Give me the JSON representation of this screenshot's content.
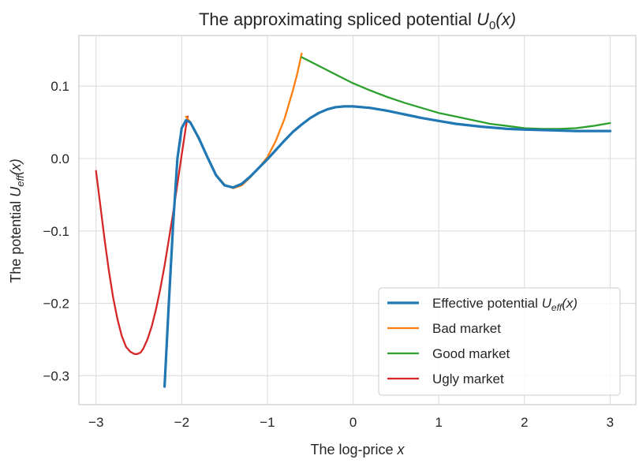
{
  "chart_data": {
    "type": "line",
    "title": {
      "prefix": "The approximating spliced potential ",
      "math": "U",
      "sub": "0",
      "suffix": "(x)"
    },
    "xlabel": {
      "prefix": "The log-price ",
      "math": "x"
    },
    "ylabel": {
      "prefix": "The potential ",
      "math": "U",
      "sub": "eff",
      "suffix": "(x)"
    },
    "xlim": [
      -3.2,
      3.3
    ],
    "ylim": [
      -0.34,
      0.17
    ],
    "xticks": [
      -3,
      -2,
      -1,
      0,
      1,
      2,
      3
    ],
    "xtick_labels": [
      "−3",
      "−2",
      "−1",
      "0",
      "1",
      "2",
      "3"
    ],
    "yticks": [
      -0.3,
      -0.2,
      -0.1,
      0.0,
      0.1
    ],
    "ytick_labels": [
      "−0.3",
      "−0.2",
      "−0.1",
      "0.0",
      "0.1"
    ],
    "grid": true,
    "legend_position": "lower-right",
    "series": [
      {
        "name": "Effective potential",
        "name_math": "U",
        "name_sub": "eff",
        "name_suffix": "(x)",
        "color": "#1f77b4",
        "x": [
          -2.2,
          -2.15,
          -2.1,
          -2.05,
          -2.0,
          -1.95,
          -1.9,
          -1.8,
          -1.7,
          -1.6,
          -1.5,
          -1.4,
          -1.3,
          -1.2,
          -1.1,
          -1.0,
          -0.9,
          -0.8,
          -0.7,
          -0.6,
          -0.5,
          -0.4,
          -0.3,
          -0.2,
          -0.1,
          0.0,
          0.2,
          0.4,
          0.6,
          0.8,
          1.0,
          1.2,
          1.5,
          1.8,
          2.0,
          2.3,
          2.6,
          3.0
        ],
        "y": [
          -0.315,
          -0.2,
          -0.09,
          0.0,
          0.042,
          0.053,
          0.05,
          0.028,
          0.002,
          -0.023,
          -0.037,
          -0.04,
          -0.035,
          -0.025,
          -0.013,
          -0.001,
          0.012,
          0.025,
          0.037,
          0.047,
          0.056,
          0.063,
          0.068,
          0.071,
          0.072,
          0.072,
          0.07,
          0.066,
          0.061,
          0.056,
          0.052,
          0.048,
          0.044,
          0.041,
          0.04,
          0.039,
          0.038,
          0.038
        ]
      },
      {
        "name": "Bad market",
        "color": "#ff7f0e",
        "x": [
          -1.95,
          -1.9,
          -1.8,
          -1.7,
          -1.6,
          -1.5,
          -1.4,
          -1.3,
          -1.2,
          -1.1,
          -1.0,
          -0.9,
          -0.8,
          -0.7,
          -0.65,
          -0.6
        ],
        "y": [
          0.058,
          0.05,
          0.027,
          0.002,
          -0.022,
          -0.036,
          -0.041,
          -0.037,
          -0.026,
          -0.013,
          0.002,
          0.025,
          0.055,
          0.095,
          0.118,
          0.145
        ]
      },
      {
        "name": "Good market",
        "color": "#2ca02c",
        "x": [
          -0.6,
          -0.4,
          -0.2,
          0.0,
          0.2,
          0.4,
          0.6,
          0.8,
          1.0,
          1.2,
          1.4,
          1.6,
          1.8,
          2.0,
          2.2,
          2.4,
          2.6,
          2.8,
          3.0
        ],
        "y": [
          0.14,
          0.128,
          0.116,
          0.104,
          0.094,
          0.085,
          0.077,
          0.07,
          0.063,
          0.058,
          0.053,
          0.048,
          0.045,
          0.042,
          0.041,
          0.041,
          0.042,
          0.045,
          0.049
        ]
      },
      {
        "name": "Ugly market",
        "color": "#d62728",
        "x": [
          -3.0,
          -2.95,
          -2.9,
          -2.85,
          -2.8,
          -2.75,
          -2.7,
          -2.65,
          -2.6,
          -2.55,
          -2.52,
          -2.48,
          -2.45,
          -2.4,
          -2.35,
          -2.3,
          -2.25,
          -2.2,
          -2.15,
          -2.1,
          -2.05,
          -2.0,
          -1.95,
          -1.93
        ],
        "y": [
          -0.017,
          -0.065,
          -0.112,
          -0.155,
          -0.192,
          -0.222,
          -0.245,
          -0.26,
          -0.267,
          -0.27,
          -0.27,
          -0.268,
          -0.263,
          -0.25,
          -0.232,
          -0.208,
          -0.18,
          -0.148,
          -0.112,
          -0.075,
          -0.035,
          0.005,
          0.045,
          0.058
        ]
      }
    ]
  }
}
